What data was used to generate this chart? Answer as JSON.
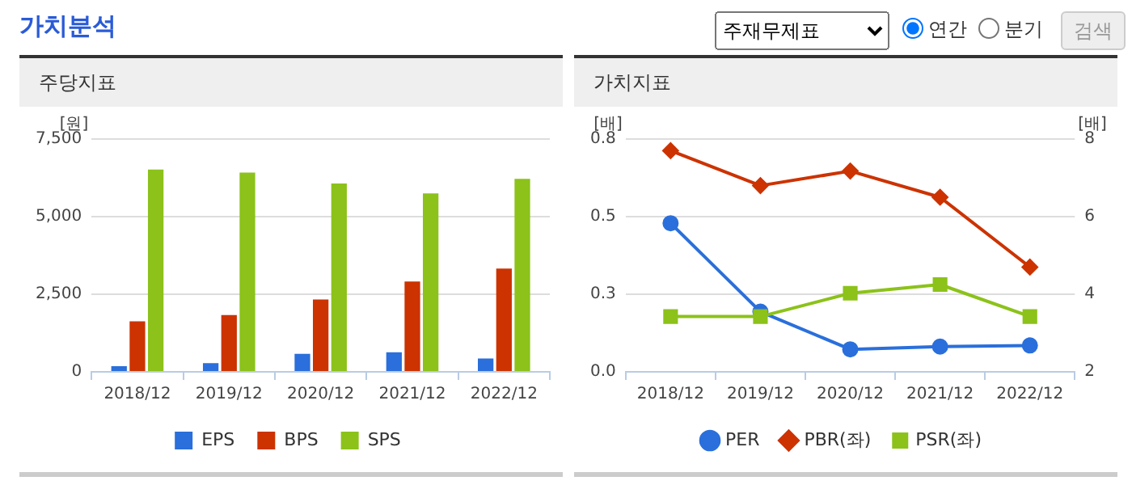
{
  "chart_data": [
    {
      "type": "other",
      "title": "가치분석",
      "annotations": [
        "주재무제표",
        "연간",
        "분기",
        "검색"
      ]
    },
    {
      "type": "bar",
      "title": "주당지표",
      "ylabel": "[원]",
      "categories": [
        "2018/12",
        "2019/12",
        "2020/12",
        "2021/12",
        "2022/12"
      ],
      "series": [
        {
          "name": "EPS",
          "color": "#2a6fdb",
          "values": [
            180,
            280,
            580,
            630,
            430
          ]
        },
        {
          "name": "BPS",
          "color": "#cc3300",
          "values": [
            1630,
            1830,
            2330,
            2910,
            3330
          ]
        },
        {
          "name": "SPS",
          "color": "#8cc21a",
          "values": [
            6520,
            6420,
            6070,
            5750,
            6220
          ]
        }
      ],
      "ylim": [
        0,
        7500
      ],
      "yticks": [
        0,
        {
          "value": 2500,
          "label": "2,500"
        },
        {
          "value": 5000,
          "label": "5,000"
        },
        {
          "value": 7500,
          "label": "7,500"
        }
      ],
      "grid": "y",
      "legend": "bottom"
    },
    {
      "type": "line",
      "title": "가치지표",
      "ylabel": "[배]",
      "y2label": "[배]",
      "categories": [
        "2018/12",
        "2019/12",
        "2020/12",
        "2021/12",
        "2022/12"
      ],
      "series": [
        {
          "name": "PER",
          "color": "#2a6fdb",
          "axis": "y2",
          "marker": "circle",
          "values": [
            5.83,
            3.55,
            2.58,
            2.65,
            2.68
          ]
        },
        {
          "name": "PBR(좌)",
          "color": "#cc3300",
          "marker": "diamond",
          "values": [
            0.76,
            0.64,
            0.69,
            0.6,
            0.36
          ]
        },
        {
          "name": "PSR(좌)",
          "color": "#8cc21a",
          "marker": "square",
          "values": [
            0.19,
            0.19,
            0.27,
            0.3,
            0.19
          ]
        }
      ],
      "ylim": [
        0,
        0.8
      ],
      "yticks": [
        {
          "value": 0,
          "label": "0.0"
        },
        {
          "value": 0.2667,
          "label": "0.3"
        },
        {
          "value": 0.5333,
          "label": "0.5"
        },
        0.8
      ],
      "y2lim": [
        2,
        8
      ],
      "y2ticks": [
        2,
        4,
        6,
        8
      ],
      "grid": "y",
      "legend": "bottom"
    }
  ]
}
